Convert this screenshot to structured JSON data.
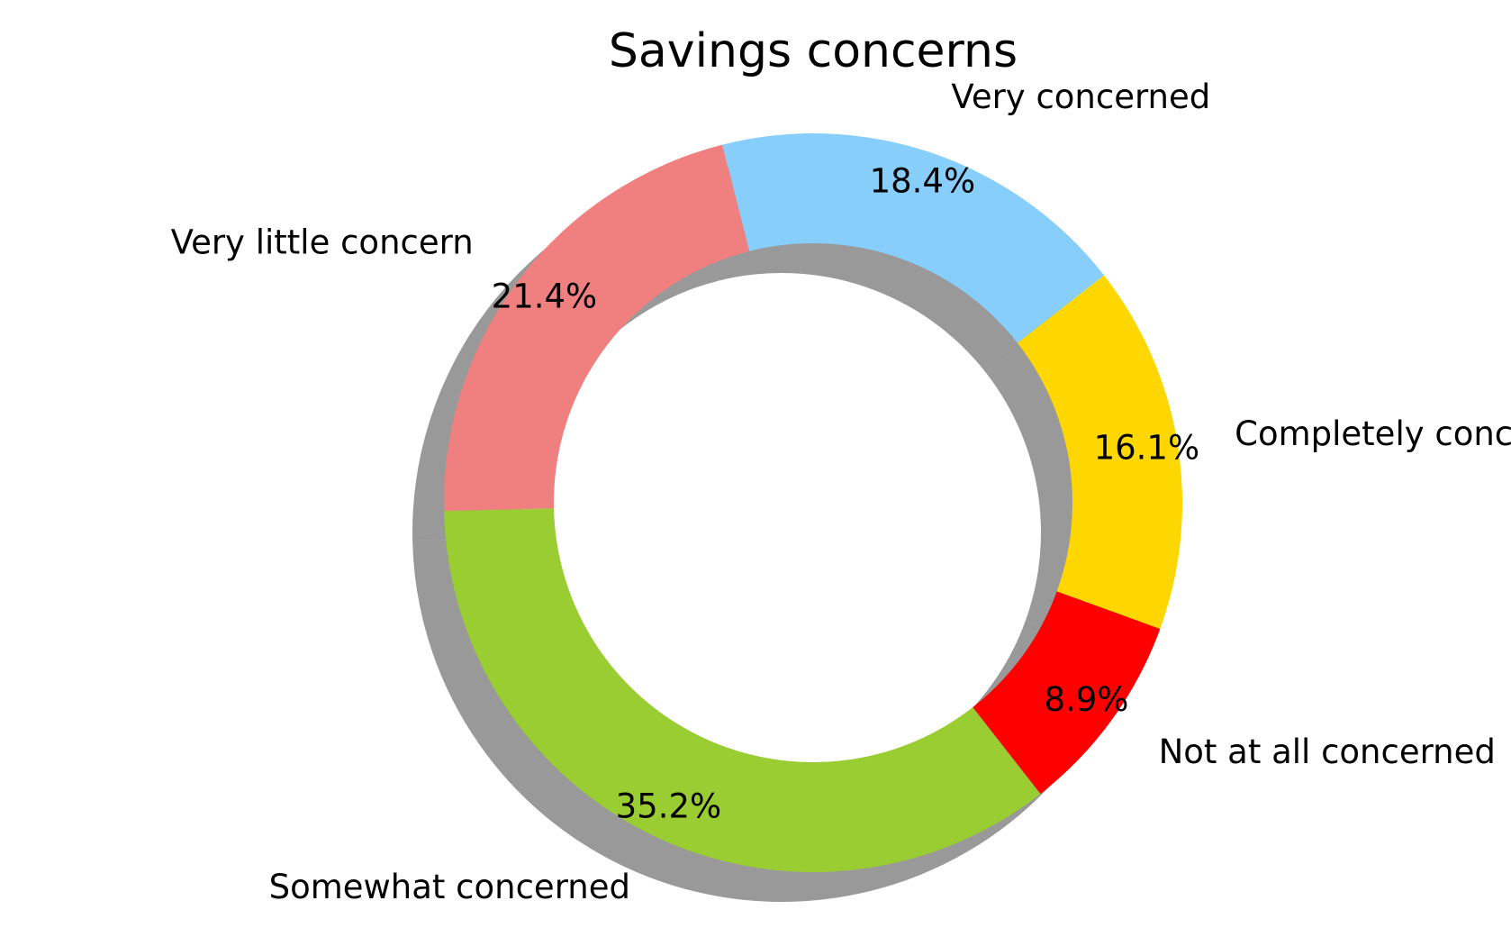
{
  "chart_data": {
    "type": "pie",
    "variant": "donut",
    "title": "Savings concerns",
    "shadow": true,
    "categories": [
      "Very concerned",
      "Very little concern",
      "Somewhat concerned",
      "Not at all concerned",
      "Completely concerned"
    ],
    "values": [
      18.4,
      21.4,
      35.2,
      8.9,
      16.1
    ],
    "value_labels": [
      "18.4%",
      "21.4%",
      "35.2%",
      "8.9%",
      "16.1%"
    ],
    "colors": [
      "#87CEFA",
      "#F08080",
      "#9ACD32",
      "#FF0000",
      "#FFD700"
    ],
    "start_angle_deg": 38,
    "direction": "counterclockwise"
  }
}
